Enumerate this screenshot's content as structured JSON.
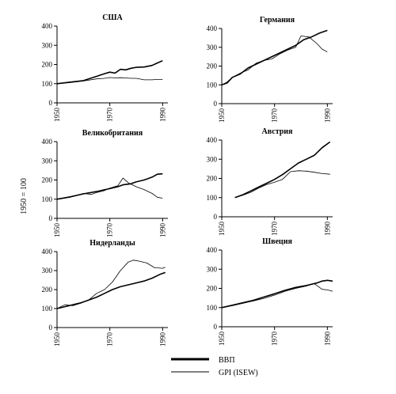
{
  "ylabel": "1950 = 100",
  "legend": {
    "gdp_label": "ВВП",
    "gpi_label": "GPI (ISEW)"
  },
  "chart_data": [
    {
      "type": "line",
      "title": "США",
      "ylim": [
        0,
        400
      ],
      "yticks": [
        0,
        100,
        200,
        300,
        400
      ],
      "xlim": [
        1950,
        1992
      ],
      "xticks": [
        1950,
        1970,
        1990
      ],
      "series": [
        {
          "name": "ВВП",
          "x": [
            1950,
            1955,
            1960,
            1965,
            1968,
            1970,
            1972,
            1974,
            1976,
            1978,
            1980,
            1983,
            1986,
            1988,
            1990
          ],
          "values": [
            100,
            108,
            116,
            138,
            152,
            160,
            155,
            175,
            172,
            180,
            185,
            187,
            195,
            208,
            220
          ]
        },
        {
          "name": "GPI (ISEW)",
          "x": [
            1950,
            1955,
            1960,
            1965,
            1968,
            1970,
            1972,
            1974,
            1976,
            1978,
            1980,
            1983,
            1986,
            1988,
            1990
          ],
          "values": [
            100,
            106,
            114,
            125,
            128,
            132,
            130,
            131,
            130,
            128,
            128,
            120,
            120,
            122,
            122
          ]
        }
      ]
    },
    {
      "type": "line",
      "title": "Германия",
      "ylim": [
        0,
        400
      ],
      "yticks": [
        0,
        100,
        200,
        300,
        400
      ],
      "xlim": [
        1950,
        1992
      ],
      "xticks": [
        1950,
        1970,
        1990
      ],
      "series": [
        {
          "name": "ВВП",
          "x": [
            1950,
            1952,
            1954,
            1957,
            1960,
            1963,
            1966,
            1969,
            1972,
            1975,
            1978,
            1981,
            1984,
            1987,
            1990
          ],
          "values": [
            100,
            110,
            140,
            158,
            190,
            210,
            230,
            250,
            270,
            290,
            310,
            340,
            355,
            375,
            390
          ]
        },
        {
          "name": "GPI (ISEW)",
          "x": [
            1950,
            1952,
            1954,
            1957,
            1960,
            1963,
            1966,
            1969,
            1972,
            1975,
            1978,
            1980,
            1983,
            1986,
            1988,
            1990
          ],
          "values": [
            100,
            115,
            140,
            162,
            180,
            215,
            230,
            238,
            265,
            285,
            300,
            360,
            355,
            320,
            290,
            275
          ]
        }
      ]
    },
    {
      "type": "line",
      "title": "Великобритания",
      "ylim": [
        0,
        400
      ],
      "yticks": [
        0,
        100,
        200,
        300,
        400
      ],
      "xlim": [
        1950,
        1992
      ],
      "xticks": [
        1950,
        1970,
        1990
      ],
      "series": [
        {
          "name": "ВВП",
          "x": [
            1950,
            1955,
            1960,
            1965,
            1970,
            1973,
            1975,
            1978,
            1980,
            1983,
            1986,
            1988,
            1990
          ],
          "values": [
            100,
            112,
            128,
            140,
            155,
            165,
            175,
            180,
            190,
            200,
            215,
            230,
            232
          ]
        },
        {
          "name": "GPI (ISEW)",
          "x": [
            1950,
            1955,
            1960,
            1963,
            1965,
            1968,
            1970,
            1973,
            1975,
            1977,
            1980,
            1983,
            1986,
            1988,
            1990
          ],
          "values": [
            100,
            110,
            130,
            125,
            135,
            145,
            158,
            170,
            210,
            185,
            165,
            150,
            130,
            110,
            105
          ]
        }
      ]
    },
    {
      "type": "line",
      "title": "Австрия",
      "ylim": [
        0,
        400
      ],
      "yticks": [
        0,
        100,
        200,
        300,
        400
      ],
      "xlim": [
        1950,
        1992
      ],
      "xticks": [
        1950,
        1970,
        1990
      ],
      "series": [
        {
          "name": "ВВП",
          "x": [
            1955,
            1958,
            1961,
            1964,
            1967,
            1970,
            1973,
            1976,
            1979,
            1982,
            1985,
            1988,
            1991
          ],
          "values": [
            100,
            115,
            135,
            155,
            175,
            195,
            220,
            250,
            280,
            300,
            320,
            360,
            390
          ]
        },
        {
          "name": "GPI (ISEW)",
          "x": [
            1955,
            1958,
            1961,
            1964,
            1967,
            1970,
            1973,
            1976,
            1979,
            1982,
            1985,
            1988,
            1991
          ],
          "values": [
            100,
            112,
            128,
            150,
            168,
            180,
            195,
            235,
            240,
            238,
            232,
            225,
            222
          ]
        }
      ]
    },
    {
      "type": "line",
      "title": "Нидерланды",
      "ylim": [
        0,
        400
      ],
      "yticks": [
        0,
        100,
        200,
        300,
        400
      ],
      "xlim": [
        1950,
        1992
      ],
      "xticks": [
        1950,
        1970,
        1990
      ],
      "series": [
        {
          "name": "ВВП",
          "x": [
            1950,
            1953,
            1956,
            1959,
            1962,
            1965,
            1968,
            1971,
            1974,
            1977,
            1980,
            1983,
            1986,
            1989,
            1991
          ],
          "values": [
            100,
            110,
            120,
            130,
            145,
            160,
            180,
            200,
            215,
            225,
            235,
            245,
            260,
            280,
            290
          ]
        },
        {
          "name": "GPI (ISEW)",
          "x": [
            1950,
            1953,
            1956,
            1959,
            1962,
            1965,
            1968,
            1971,
            1974,
            1977,
            1979,
            1981,
            1984,
            1987,
            1990,
            1991
          ],
          "values": [
            100,
            120,
            115,
            128,
            145,
            180,
            200,
            240,
            300,
            345,
            355,
            350,
            340,
            315,
            312,
            318
          ]
        }
      ]
    },
    {
      "type": "line",
      "title": "Швеция",
      "ylim": [
        0,
        400
      ],
      "yticks": [
        0,
        100,
        200,
        300,
        400
      ],
      "xlim": [
        1950,
        1992
      ],
      "xticks": [
        1950,
        1970,
        1990
      ],
      "series": [
        {
          "name": "ВВП",
          "x": [
            1950,
            1954,
            1958,
            1962,
            1966,
            1970,
            1974,
            1978,
            1982,
            1986,
            1988,
            1990,
            1992
          ],
          "values": [
            100,
            112,
            125,
            138,
            155,
            172,
            190,
            205,
            215,
            228,
            238,
            242,
            238
          ]
        },
        {
          "name": "GPI (ISEW)",
          "x": [
            1950,
            1954,
            1958,
            1962,
            1966,
            1970,
            1974,
            1978,
            1982,
            1985,
            1988,
            1990,
            1992
          ],
          "values": [
            100,
            110,
            122,
            135,
            148,
            165,
            185,
            200,
            212,
            225,
            195,
            192,
            185
          ]
        }
      ]
    }
  ]
}
